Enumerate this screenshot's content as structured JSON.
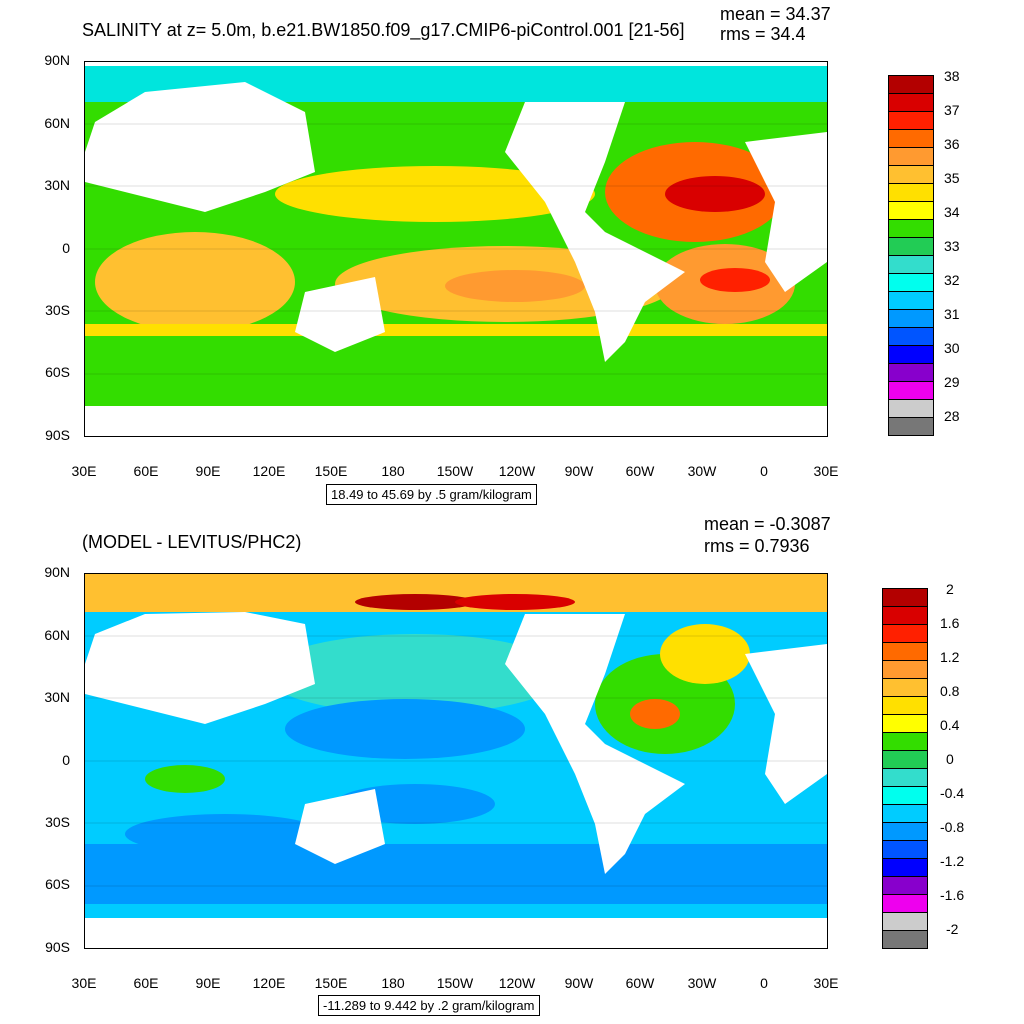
{
  "top": {
    "title": "SALINITY at z=   5.0m, b.e21.BW1850.f09_g17.CMIP6-piControl.001 [21-56]",
    "mean": "mean = 34.37",
    "rms": "rms = 34.4",
    "range_label": "18.49 to 45.69 by .5 gram/kilogram",
    "legend_labels": [
      "38",
      "37",
      "36",
      "35",
      "34",
      "33",
      "32",
      "31",
      "30",
      "29",
      "28"
    ]
  },
  "bottom": {
    "title": "(MODEL - LEVITUS/PHC2)",
    "mean": "mean = -0.3087",
    "rms": "rms = 0.7936",
    "range_label": "-11.289 to 9.442 by .2 gram/kilogram",
    "legend_labels": [
      "2",
      "1.6",
      "1.2",
      "0.8",
      "0.4",
      "0",
      "-0.4",
      "-0.8",
      "-1.2",
      "-1.6",
      "-2"
    ]
  },
  "axes": {
    "y_ticks": [
      "90N",
      "60N",
      "30N",
      "0",
      "30S",
      "60S",
      "90S"
    ],
    "x_ticks": [
      "30E",
      "60E",
      "90E",
      "120E",
      "150E",
      "180",
      "150W",
      "120W",
      "90W",
      "60W",
      "30W",
      "0",
      "30E"
    ]
  },
  "colors": {
    "top_scale": [
      "#b30000",
      "#d90000",
      "#ff2000",
      "#ff6a00",
      "#ff9a30",
      "#ffc030",
      "#ffe000",
      "#ffff00",
      "#33dd00",
      "#22cc55",
      "#33ddcc",
      "#00ffee",
      "#00ccff",
      "#0099ff",
      "#0055ff",
      "#0000ff",
      "#8800cc",
      "#ee00ee",
      "#cccccc",
      "#777777"
    ],
    "bottom_scale": [
      "#b30000",
      "#d90000",
      "#ff2000",
      "#ff6a00",
      "#ff9a30",
      "#ffc030",
      "#ffe000",
      "#ffff00",
      "#33dd00",
      "#22cc55",
      "#33ddcc",
      "#00ffee",
      "#00ccff",
      "#0099ff",
      "#0055ff",
      "#0000ff",
      "#8800cc",
      "#ee00ee",
      "#cccccc",
      "#777777"
    ],
    "land": "#ffffff"
  }
}
